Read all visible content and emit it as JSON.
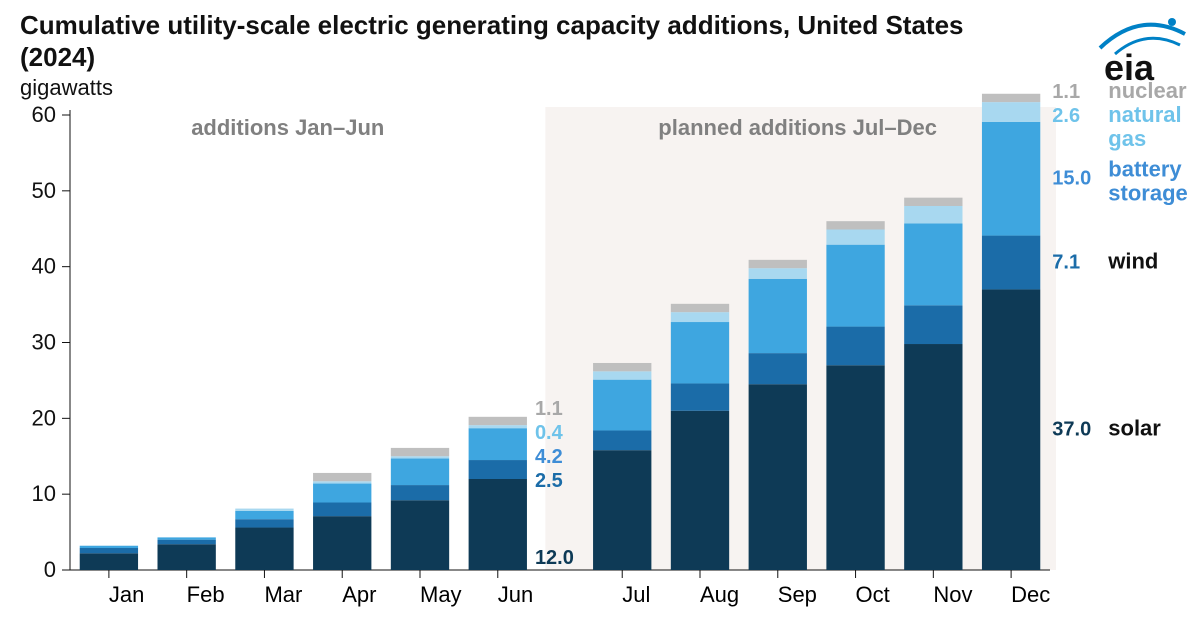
{
  "title": "Cumulative utility-scale electric generating capacity additions, United States (2024)",
  "title_fontsize": 26,
  "subtitle": "gigawatts",
  "annot_left": "additions Jan–Jun",
  "annot_right": "planned additions Jul–Dec",
  "background_color": "#ffffff",
  "shaded_color": "#f0eae6",
  "text_color": "#111111",
  "annot_color": "#808080",
  "axis_color": "#111111",
  "ylim": [
    0,
    60
  ],
  "ytick_step": 10,
  "months": [
    "Jan",
    "Feb",
    "Mar",
    "Apr",
    "May",
    "Jun",
    "Jul",
    "Aug",
    "Sep",
    "Oct",
    "Nov",
    "Dec"
  ],
  "series": [
    {
      "key": "solar",
      "label": "solar",
      "color": "#0e3a56",
      "legend_color": "#111111"
    },
    {
      "key": "wind",
      "label": "wind",
      "color": "#1b6ca8",
      "legend_color": "#1b6ca8"
    },
    {
      "key": "battery",
      "label": "battery storage",
      "color": "#3ea6e0",
      "legend_color": "#3e8dd6"
    },
    {
      "key": "gas",
      "label": "natural gas",
      "color": "#a8d8f0",
      "legend_color": "#6fc3ea"
    },
    {
      "key": "nuclear",
      "label": "nuclear",
      "color": "#bfbfbf",
      "legend_color": "#a8a8a8"
    }
  ],
  "data": {
    "solar": [
      2.2,
      3.4,
      5.6,
      7.1,
      9.2,
      12.0,
      15.8,
      21.0,
      24.5,
      27.0,
      29.8,
      37.0
    ],
    "wind": [
      0.7,
      0.6,
      1.1,
      1.8,
      2.0,
      2.5,
      2.6,
      3.6,
      4.1,
      5.1,
      5.1,
      7.1
    ],
    "battery": [
      0.3,
      0.3,
      1.1,
      2.5,
      3.5,
      4.2,
      6.7,
      8.1,
      9.8,
      10.8,
      10.8,
      15.0
    ],
    "gas": [
      0.0,
      0.0,
      0.3,
      0.3,
      0.3,
      0.4,
      1.1,
      1.3,
      1.4,
      2.0,
      2.3,
      2.6
    ],
    "nuclear": [
      0.0,
      0.0,
      0.0,
      1.1,
      1.1,
      1.1,
      1.1,
      1.1,
      1.1,
      1.1,
      1.1,
      1.1
    ]
  },
  "jun_labels": [
    {
      "key": "nuclear",
      "value": "1.1"
    },
    {
      "key": "gas",
      "value": "0.4"
    },
    {
      "key": "battery",
      "value": "4.2"
    },
    {
      "key": "wind",
      "value": "2.5"
    },
    {
      "key": "solar",
      "value": "12.0"
    }
  ],
  "dec_labels": [
    {
      "key": "nuclear",
      "value": "1.1"
    },
    {
      "key": "gas",
      "value": "2.6"
    },
    {
      "key": "battery",
      "value": "15.0"
    },
    {
      "key": "wind",
      "value": "7.1"
    },
    {
      "key": "solar",
      "value": "37.0"
    }
  ],
  "logo_text": "eia",
  "brand_color": "#0081c6",
  "bar_group_gap": 0.25,
  "half_gap": 0.6
}
